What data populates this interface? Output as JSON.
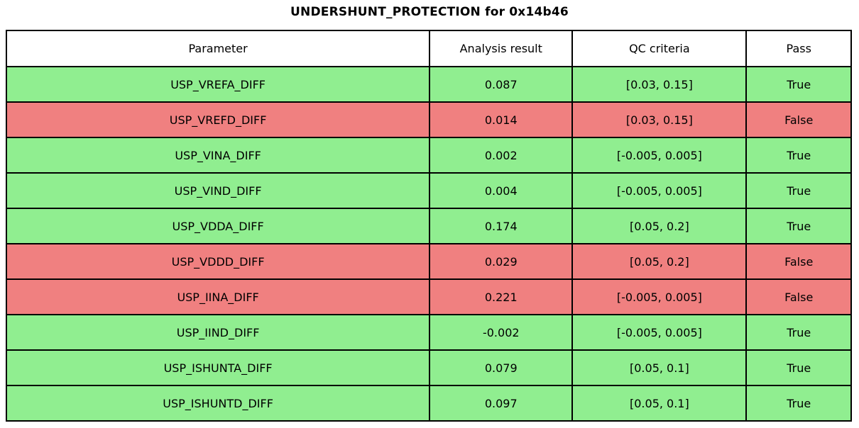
{
  "title": "UNDERSHUNT_PROTECTION for 0x14b46",
  "colors": {
    "pass_row": "#90EE90",
    "fail_row": "#F08080",
    "header_bg": "#FFFFFF",
    "border": "#000000",
    "text": "#000000"
  },
  "chart_data": {
    "type": "table",
    "title": "UNDERSHUNT_PROTECTION for 0x14b46",
    "columns": [
      "Parameter",
      "Analysis result",
      "QC criteria",
      "Pass"
    ],
    "rows": [
      [
        "USP_VREFA_DIFF",
        "0.087",
        "[0.03, 0.15]",
        "True"
      ],
      [
        "USP_VREFD_DIFF",
        "0.014",
        "[0.03, 0.15]",
        "False"
      ],
      [
        "USP_VINA_DIFF",
        "0.002",
        "[-0.005, 0.005]",
        "True"
      ],
      [
        "USP_VIND_DIFF",
        "0.004",
        "[-0.005, 0.005]",
        "True"
      ],
      [
        "USP_VDDA_DIFF",
        "0.174",
        "[0.05, 0.2]",
        "True"
      ],
      [
        "USP_VDDD_DIFF",
        "0.029",
        "[0.05, 0.2]",
        "False"
      ],
      [
        "USP_IINA_DIFF",
        "0.221",
        "[-0.005, 0.005]",
        "False"
      ],
      [
        "USP_IIND_DIFF",
        "-0.002",
        "[-0.005, 0.005]",
        "True"
      ],
      [
        "USP_ISHUNTA_DIFF",
        "0.079",
        "[0.05, 0.1]",
        "True"
      ],
      [
        "USP_ISHUNTD_DIFF",
        "0.097",
        "[0.05, 0.1]",
        "True"
      ]
    ],
    "row_pass": [
      true,
      false,
      true,
      true,
      true,
      false,
      false,
      true,
      true,
      true
    ],
    "legend_position": "none",
    "grid": true
  }
}
